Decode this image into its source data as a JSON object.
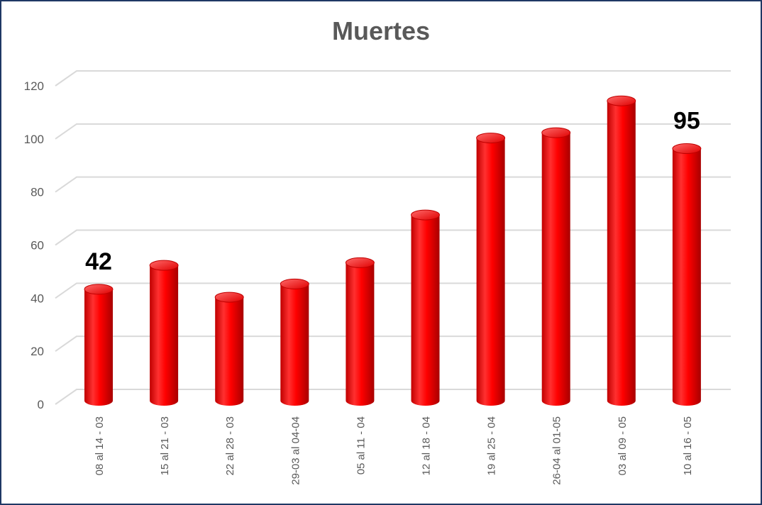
{
  "chart_data": {
    "type": "bar",
    "title": "Muertes",
    "categories": [
      "08 al 14 - 03",
      "15 al 21 - 03",
      "22 al 28 - 03",
      "29-03 al 04-04",
      "05 al 11 - 04",
      "12 al 18 - 04",
      "19 al 25 - 04",
      "26-04 al 01-05",
      "03 al 09 - 05",
      "10 al 16 - 05"
    ],
    "values": [
      42,
      51,
      39,
      44,
      52,
      70,
      99,
      101,
      113,
      95
    ],
    "data_labels": [
      {
        "index": 0,
        "text": "42"
      },
      {
        "index": 9,
        "text": "95"
      }
    ],
    "ylim": [
      0,
      120
    ],
    "yticks": [
      "0",
      "20",
      "40",
      "60",
      "80",
      "100",
      "120"
    ],
    "grid": true,
    "style": "3d-cylinder",
    "bar_color": "#ff0000",
    "bar_highlight": "#ff5050",
    "bar_shadow": "#b00000",
    "border_color": "#1f3864"
  }
}
